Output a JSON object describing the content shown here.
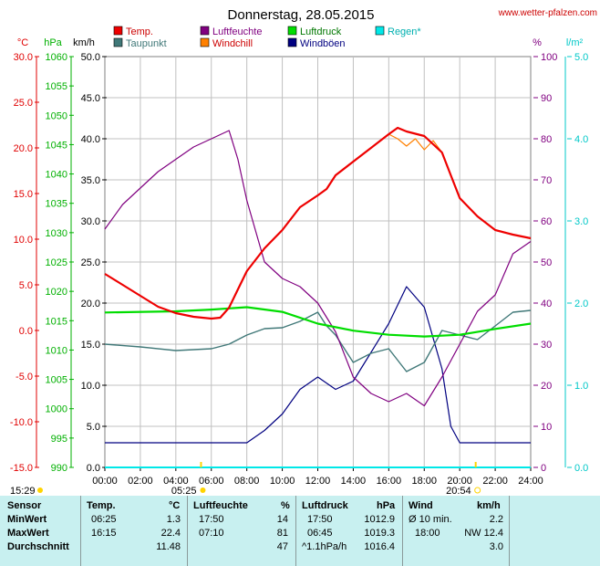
{
  "chart_data": {
    "type": "line",
    "title": "Donnerstag, 28.05.2015",
    "website": "www.wetter-pfalzen.com",
    "x_ticks": [
      "00:00",
      "02:00",
      "04:00",
      "06:00",
      "08:00",
      "10:00",
      "12:00",
      "14:00",
      "16:00",
      "18:00",
      "20:00",
      "22:00",
      "24:00"
    ],
    "grid": true,
    "legend_entries": [
      {
        "name": "Temp.",
        "color": "#ee0000"
      },
      {
        "name": "Taupunkt",
        "color": "#407878"
      },
      {
        "name": "Luftfeuchte",
        "color": "#800080"
      },
      {
        "name": "Windchill",
        "color": "#ff8000"
      },
      {
        "name": "Luftdruck",
        "color": "#00dd00"
      },
      {
        "name": "Windböen",
        "color": "#000080"
      },
      {
        "name": "Regen*",
        "color": "#00e8e8"
      }
    ],
    "axes": {
      "temp": {
        "unit": "°C",
        "ylim": [
          -15,
          30
        ],
        "ticks": [
          "30.0",
          "25.0",
          "20.0",
          "15.0",
          "10.0",
          "5.0",
          "0.0",
          "-5.0",
          "-10.0",
          "-15.0"
        ],
        "color": "#e00000"
      },
      "pressure": {
        "unit": "hPa",
        "ylim": [
          990,
          1060
        ],
        "ticks": [
          "1060",
          "1055",
          "1050",
          "1045",
          "1040",
          "1035",
          "1030",
          "1025",
          "1020",
          "1015",
          "1010",
          "1005",
          "1000",
          "995",
          "990"
        ],
        "color": "#00b000"
      },
      "wind": {
        "unit": "km/h",
        "ylim": [
          0,
          50
        ],
        "ticks": [
          "50.0",
          "45.0",
          "40.0",
          "35.0",
          "30.0",
          "25.0",
          "20.0",
          "15.0",
          "10.0",
          "5.0",
          "0.0"
        ],
        "color": "#000000"
      },
      "humidity": {
        "unit": "%",
        "ylim": [
          0,
          100
        ],
        "ticks": [
          "100",
          "90",
          "80",
          "70",
          "60",
          "50",
          "40",
          "30",
          "20",
          "10",
          "0"
        ],
        "color": "#800080"
      },
      "rain": {
        "unit": "l/m²",
        "ylim": [
          0,
          5
        ],
        "ticks": [
          "5.0",
          "4.0",
          "3.0",
          "2.0",
          "1.0",
          "0.0"
        ],
        "color": "#00c8c8"
      }
    },
    "sun_times": {
      "sunrise_label": "05:25",
      "sunset_label": "20:54",
      "left_label": "15:29",
      "sunrise_hour": 5.42,
      "sunset_hour": 20.9
    },
    "series": [
      {
        "name": "Temp.",
        "axis": "temp",
        "points": [
          [
            0,
            6.2
          ],
          [
            1,
            5.0
          ],
          [
            2,
            3.8
          ],
          [
            3,
            2.6
          ],
          [
            4,
            1.9
          ],
          [
            5,
            1.5
          ],
          [
            6,
            1.3
          ],
          [
            6.5,
            1.4
          ],
          [
            7,
            2.5
          ],
          [
            7.5,
            4.5
          ],
          [
            8,
            6.5
          ],
          [
            9,
            9.0
          ],
          [
            10,
            11.0
          ],
          [
            11,
            13.5
          ],
          [
            12,
            14.8
          ],
          [
            12.5,
            15.5
          ],
          [
            13,
            17.0
          ],
          [
            14,
            18.5
          ],
          [
            15,
            20.0
          ],
          [
            16,
            21.5
          ],
          [
            16.5,
            22.2
          ],
          [
            17,
            21.8
          ],
          [
            18,
            21.3
          ],
          [
            19,
            19.5
          ],
          [
            19.5,
            17.0
          ],
          [
            20,
            14.5
          ],
          [
            21,
            12.5
          ],
          [
            22,
            11.0
          ],
          [
            23,
            10.5
          ],
          [
            24,
            10.1
          ]
        ]
      },
      {
        "name": "Taupunkt",
        "axis": "temp",
        "points": [
          [
            0,
            -1.5
          ],
          [
            2,
            -1.8
          ],
          [
            4,
            -2.2
          ],
          [
            6,
            -2.0
          ],
          [
            7,
            -1.5
          ],
          [
            8,
            -0.5
          ],
          [
            9,
            0.2
          ],
          [
            10,
            0.3
          ],
          [
            11,
            1.0
          ],
          [
            12,
            2.0
          ],
          [
            12.5,
            0.5
          ],
          [
            13,
            -0.5
          ],
          [
            14,
            -3.5
          ],
          [
            15,
            -2.5
          ],
          [
            16,
            -2.0
          ],
          [
            17,
            -4.5
          ],
          [
            18,
            -3.5
          ],
          [
            19,
            0.0
          ],
          [
            20,
            -0.5
          ],
          [
            21,
            -1.0
          ],
          [
            22,
            0.5
          ],
          [
            23,
            2.0
          ],
          [
            24,
            2.2
          ]
        ]
      },
      {
        "name": "Luftfeuchte",
        "axis": "humidity",
        "points": [
          [
            0,
            58
          ],
          [
            1,
            64
          ],
          [
            2,
            68
          ],
          [
            3,
            72
          ],
          [
            4,
            75
          ],
          [
            5,
            78
          ],
          [
            6,
            80
          ],
          [
            7,
            82
          ],
          [
            7.5,
            75
          ],
          [
            8,
            65
          ],
          [
            9,
            50
          ],
          [
            10,
            46
          ],
          [
            11,
            44
          ],
          [
            12,
            40
          ],
          [
            13,
            33
          ],
          [
            14,
            22
          ],
          [
            15,
            18
          ],
          [
            16,
            16
          ],
          [
            17,
            18
          ],
          [
            18,
            15
          ],
          [
            19,
            22
          ],
          [
            20,
            30
          ],
          [
            21,
            38
          ],
          [
            22,
            42
          ],
          [
            23,
            52
          ],
          [
            24,
            55
          ]
        ]
      },
      {
        "name": "Windchill",
        "axis": "temp",
        "points": [
          [
            14,
            18.5
          ],
          [
            15,
            20.0
          ],
          [
            16,
            21.5
          ],
          [
            16.5,
            21.0
          ],
          [
            17,
            20.2
          ],
          [
            17.5,
            21.0
          ],
          [
            18,
            19.8
          ],
          [
            18.5,
            20.8
          ],
          [
            19,
            19.5
          ]
        ]
      },
      {
        "name": "Luftdruck",
        "axis": "pressure",
        "points": [
          [
            0,
            1016.4
          ],
          [
            4,
            1016.6
          ],
          [
            6,
            1016.9
          ],
          [
            8,
            1017.3
          ],
          [
            10,
            1016.5
          ],
          [
            12,
            1014.5
          ],
          [
            14,
            1013.3
          ],
          [
            16,
            1012.6
          ],
          [
            18,
            1012.3
          ],
          [
            20,
            1012.6
          ],
          [
            22,
            1013.6
          ],
          [
            24,
            1014.5
          ]
        ]
      },
      {
        "name": "Windböen",
        "axis": "wind",
        "points": [
          [
            0,
            3.0
          ],
          [
            1,
            3.0
          ],
          [
            2,
            3.0
          ],
          [
            3,
            3.0
          ],
          [
            4,
            3.0
          ],
          [
            5,
            3.0
          ],
          [
            6,
            3.0
          ],
          [
            7,
            3.0
          ],
          [
            8,
            3.0
          ],
          [
            9,
            4.5
          ],
          [
            10,
            6.5
          ],
          [
            11,
            9.5
          ],
          [
            12,
            11.0
          ],
          [
            13,
            9.5
          ],
          [
            14,
            10.5
          ],
          [
            15,
            14.0
          ],
          [
            16,
            17.5
          ],
          [
            17,
            22.0
          ],
          [
            18,
            19.5
          ],
          [
            19,
            12.0
          ],
          [
            19.5,
            5.0
          ],
          [
            20,
            3.0
          ],
          [
            21,
            3.0
          ],
          [
            22,
            3.0
          ],
          [
            23,
            3.0
          ],
          [
            24,
            3.0
          ]
        ]
      },
      {
        "name": "Regen*",
        "axis": "rain",
        "points": [
          [
            0,
            0
          ],
          [
            24,
            0
          ]
        ]
      }
    ]
  },
  "stats": {
    "headers": {
      "sensor": "Sensor",
      "temp": "Temp.",
      "temp_unit": "°C",
      "hum": "Luftfeuchte",
      "hum_unit": "%",
      "press": "Luftdruck",
      "press_unit": "hPa",
      "wind": "Wind",
      "wind_unit": "km/h"
    },
    "rows": [
      {
        "label": "MinWert",
        "temp_time": "06:25",
        "temp_val": "1.3",
        "hum_time": "17:50",
        "hum_val": "14",
        "press_time": "17:50",
        "press_val": "1012.9",
        "wind_time": "Ø 10 min.",
        "wind_val": "2.2"
      },
      {
        "label": "MaxWert",
        "temp_time": "16:15",
        "temp_val": "22.4",
        "hum_time": "07:10",
        "hum_val": "81",
        "press_time": "06:45",
        "press_val": "1019.3",
        "wind_time": "18:00",
        "wind_val": "NW 12.4"
      },
      {
        "label": "Durchschnitt",
        "temp_time": "",
        "temp_val": "11.48",
        "hum_time": "",
        "hum_val": "47",
        "press_time": "^1.1hPa/h",
        "press_val": "1016.4",
        "wind_time": "",
        "wind_val": "3.0"
      }
    ]
  }
}
